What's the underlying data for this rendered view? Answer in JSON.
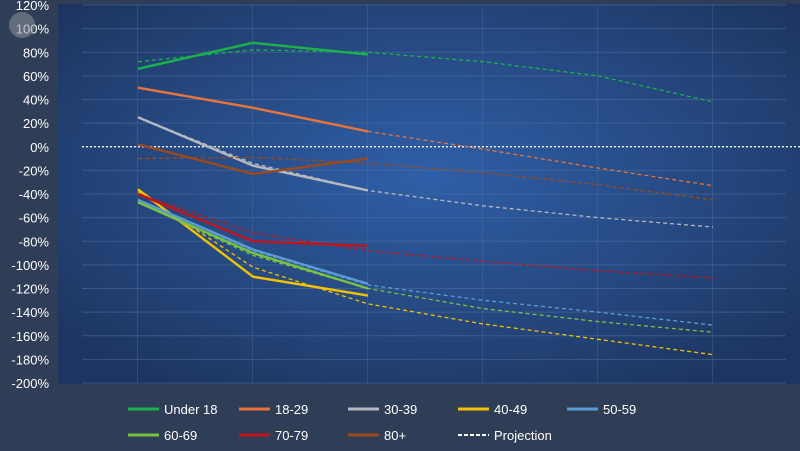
{
  "chart_data": {
    "type": "line",
    "title": "",
    "xlabel": "",
    "ylabel": "",
    "ylim": [
      -200,
      120
    ],
    "y_ticks": [
      "120%",
      "100%",
      "80%",
      "60%",
      "40%",
      "20%",
      "0%",
      "-20%",
      "-40%",
      "-60%",
      "-80%",
      "-100%",
      "-120%",
      "-140%",
      "-160%",
      "-180%",
      "-200%"
    ],
    "y_tick_values": [
      120,
      100,
      80,
      60,
      40,
      20,
      0,
      -20,
      -40,
      -60,
      -80,
      -100,
      -120,
      -140,
      -160,
      -180,
      -200
    ],
    "x_points": [
      0,
      1,
      2,
      3,
      4,
      5
    ],
    "grid": true,
    "zero_line": "dotted white",
    "legend_position": "bottom",
    "series": [
      {
        "name": "Under 18",
        "color": "#1bb24b",
        "values": [
          66,
          88,
          78
        ],
        "projection": [
          72,
          82,
          80,
          72,
          60,
          38
        ]
      },
      {
        "name": "18-29",
        "color": "#e8743b",
        "values": [
          50,
          33,
          13
        ],
        "projection": [
          null,
          null,
          13,
          -2,
          -18,
          -33
        ]
      },
      {
        "name": "30-39",
        "color": "#b4b8bf",
        "values": [
          25,
          -16,
          -37
        ],
        "projection": [
          25,
          -14,
          -37,
          -50,
          -60,
          -68
        ]
      },
      {
        "name": "40-49",
        "color": "#f2c200",
        "values": [
          -36,
          -110,
          -126
        ],
        "projection": [
          -38,
          -102,
          -133,
          -150,
          -163,
          -176
        ]
      },
      {
        "name": "50-59",
        "color": "#5b9bd5",
        "values": [
          -45,
          -87,
          -116
        ],
        "projection": [
          -45,
          -88,
          -117,
          -130,
          -140,
          -151
        ]
      },
      {
        "name": "60-69",
        "color": "#7ac143",
        "values": [
          -47,
          -90,
          -120
        ],
        "projection": [
          -47,
          -92,
          -120,
          -137,
          -148,
          -157
        ]
      },
      {
        "name": "70-79",
        "color": "#c0151b",
        "values": [
          -40,
          -80,
          -84
        ],
        "projection": [
          -40,
          -73,
          -88,
          -97,
          -105,
          -111
        ]
      },
      {
        "name": "80+",
        "color": "#9c4a1a",
        "values": [
          2,
          -23,
          -10
        ],
        "projection": [
          -10,
          -9,
          -14,
          -22,
          -32,
          -45
        ]
      }
    ],
    "legend": [
      {
        "label": "Under 18",
        "color": "#1bb24b",
        "dashed": false
      },
      {
        "label": "18-29",
        "color": "#e8743b",
        "dashed": false
      },
      {
        "label": "30-39",
        "color": "#b4b8bf",
        "dashed": false
      },
      {
        "label": "40-49",
        "color": "#f2c200",
        "dashed": false
      },
      {
        "label": "50-59",
        "color": "#5b9bd5",
        "dashed": false
      },
      {
        "label": "60-69",
        "color": "#7ac143",
        "dashed": false
      },
      {
        "label": "70-79",
        "color": "#c0151b",
        "dashed": false
      },
      {
        "label": "80+",
        "color": "#9c4a1a",
        "dashed": false
      },
      {
        "label": "Projection",
        "color": "#ffffff",
        "dashed": true
      }
    ]
  }
}
